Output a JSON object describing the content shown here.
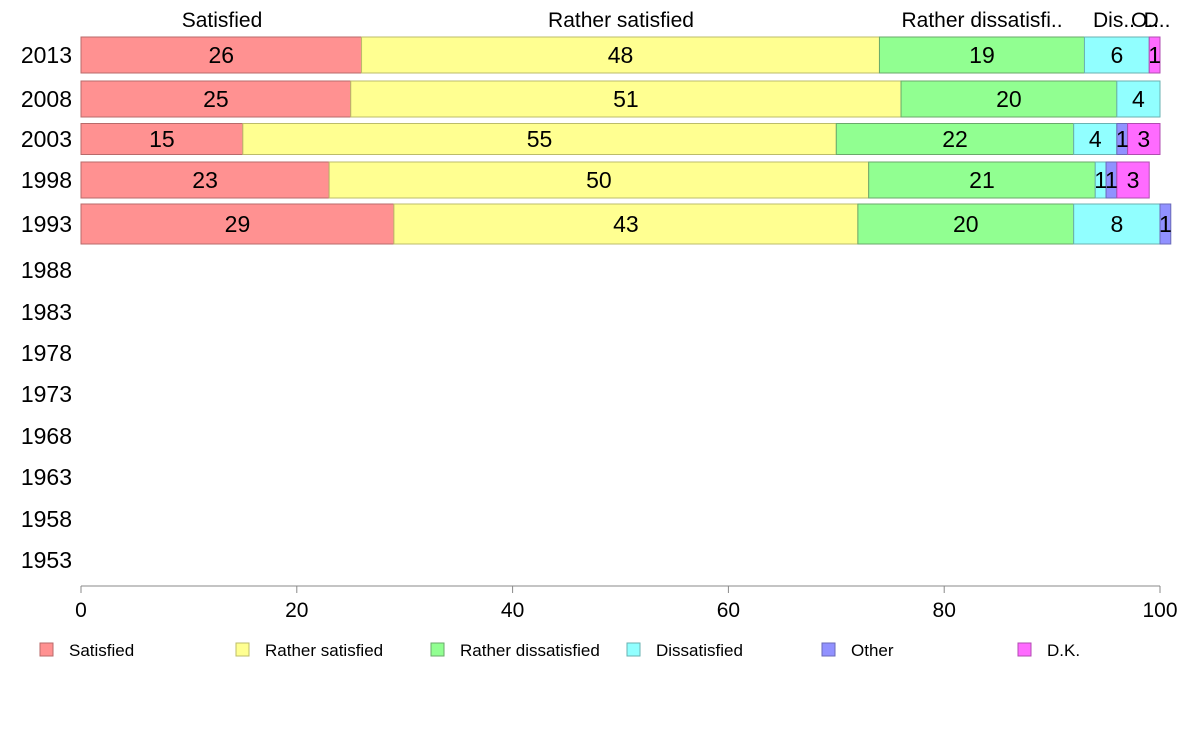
{
  "chart_data": {
    "type": "bar",
    "orientation": "horizontal",
    "stacked": true,
    "categories": [
      "2013",
      "2008",
      "2003",
      "1998",
      "1993",
      "1988",
      "1983",
      "1978",
      "1973",
      "1968",
      "1963",
      "1958",
      "1953"
    ],
    "series": [
      {
        "name": "Satisfied",
        "color": "#ff9191",
        "values": [
          26,
          25,
          15,
          23,
          29,
          null,
          null,
          null,
          null,
          null,
          null,
          null,
          null
        ]
      },
      {
        "name": "Rather satisfied",
        "color": "#ffff91",
        "values": [
          48,
          51,
          55,
          50,
          43,
          null,
          null,
          null,
          null,
          null,
          null,
          null,
          null
        ]
      },
      {
        "name": "Rather dissatisfied",
        "color": "#91ff91",
        "values": [
          19,
          20,
          22,
          21,
          20,
          null,
          null,
          null,
          null,
          null,
          null,
          null,
          null
        ]
      },
      {
        "name": "Dissatisfied",
        "color": "#91ffff",
        "values": [
          6,
          4,
          4,
          1,
          8,
          null,
          null,
          null,
          null,
          null,
          null,
          null,
          null
        ]
      },
      {
        "name": "Other",
        "color": "#9191ff",
        "values": [
          0,
          0,
          1,
          1,
          1,
          null,
          null,
          null,
          null,
          null,
          null,
          null,
          null
        ]
      },
      {
        "name": "D.K.",
        "color": "#ff6bff",
        "values": [
          1,
          0,
          3,
          3,
          0,
          null,
          null,
          null,
          null,
          null,
          null,
          null,
          null
        ]
      }
    ],
    "top_labels": [
      "Satisfied",
      "Rather satisfied",
      "Rather dissatisfi..",
      "Dis..",
      "O..",
      "D.."
    ],
    "xlim": [
      0,
      100
    ],
    "xticks": [
      "0",
      "20",
      "40",
      "60",
      "80",
      "100"
    ],
    "grid": false,
    "legend_position": "bottom"
  }
}
